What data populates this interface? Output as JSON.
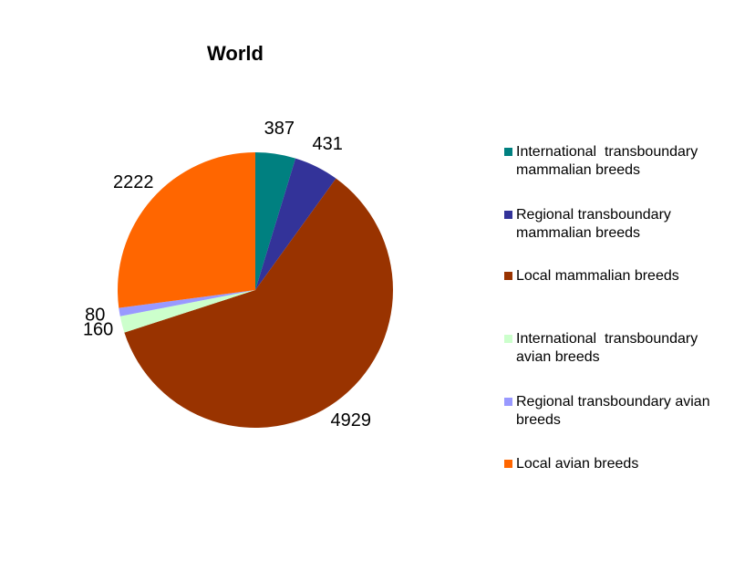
{
  "chart_data": {
    "type": "pie",
    "title": "World",
    "categories": [
      "International  transboundary mammalian breeds",
      "Regional transboundary mammalian breeds",
      "Local mammalian breeds",
      "International  transboundary avian breeds",
      "Regional transboundary avian breeds",
      "Local avian breeds"
    ],
    "values": [
      387,
      431,
      4929,
      160,
      80,
      2222
    ],
    "colors": [
      "#008080",
      "#333399",
      "#993300",
      "#ccffcc",
      "#9999ff",
      "#ff6600"
    ],
    "legend": "right"
  }
}
